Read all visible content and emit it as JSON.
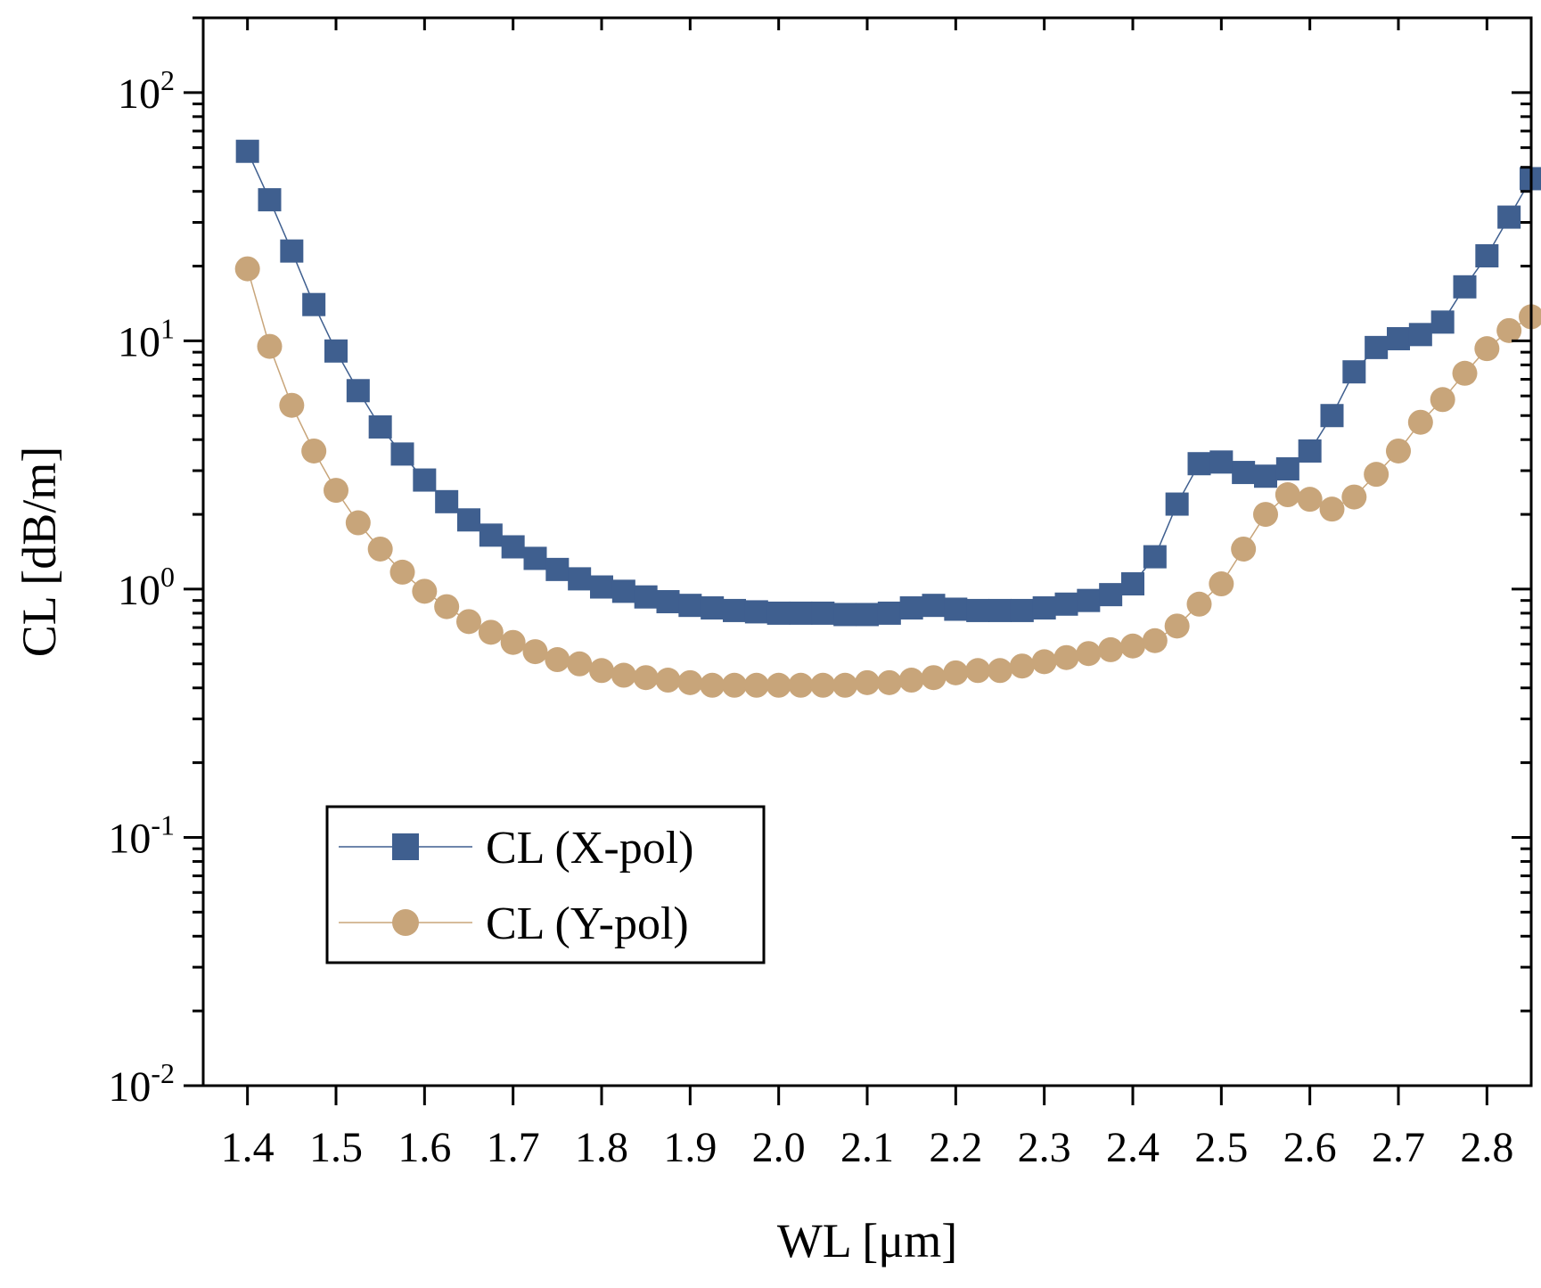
{
  "chart_data": {
    "type": "line",
    "scale_y": "log",
    "xlabel": "WL  [μm]",
    "ylabel": "CL [dB/m]",
    "xlim": [
      1.35,
      2.85
    ],
    "ylim": [
      0.01,
      200
    ],
    "x_ticks": [
      "1.4",
      "1.5",
      "1.6",
      "1.7",
      "1.8",
      "1.9",
      "2.0",
      "2.1",
      "2.2",
      "2.3",
      "2.4",
      "2.5",
      "2.6",
      "2.7",
      "2.8"
    ],
    "y_ticks": [
      {
        "value": 100,
        "base": "10",
        "exp": "2"
      },
      {
        "value": 10,
        "base": "10",
        "exp": "1"
      },
      {
        "value": 1,
        "base": "10",
        "exp": "0"
      },
      {
        "value": 0.1,
        "base": "10",
        "exp": "-1"
      },
      {
        "value": 0.01,
        "base": "10",
        "exp": "-2"
      }
    ],
    "legend_position": "bottom-left",
    "series": [
      {
        "name": "CL (X-pol)",
        "color": "#3f5f8f",
        "marker": "square",
        "x": [
          1.4,
          1.425,
          1.45,
          1.475,
          1.5,
          1.525,
          1.55,
          1.575,
          1.6,
          1.625,
          1.65,
          1.675,
          1.7,
          1.725,
          1.75,
          1.775,
          1.8,
          1.825,
          1.85,
          1.875,
          1.9,
          1.925,
          1.95,
          1.975,
          2.0,
          2.025,
          2.05,
          2.075,
          2.1,
          2.125,
          2.15,
          2.175,
          2.2,
          2.225,
          2.25,
          2.275,
          2.3,
          2.325,
          2.35,
          2.375,
          2.4,
          2.425,
          2.45,
          2.475,
          2.5,
          2.525,
          2.55,
          2.575,
          2.6,
          2.625,
          2.65,
          2.675,
          2.7,
          2.725,
          2.75,
          2.775,
          2.8,
          2.825,
          2.85
        ],
        "values": [
          58,
          37,
          23,
          14,
          9.1,
          6.3,
          4.5,
          3.5,
          2.75,
          2.25,
          1.9,
          1.65,
          1.48,
          1.33,
          1.2,
          1.1,
          1.02,
          0.98,
          0.93,
          0.89,
          0.86,
          0.84,
          0.82,
          0.81,
          0.8,
          0.8,
          0.8,
          0.79,
          0.79,
          0.8,
          0.84,
          0.86,
          0.83,
          0.82,
          0.82,
          0.82,
          0.84,
          0.87,
          0.9,
          0.95,
          1.05,
          1.35,
          2.2,
          3.2,
          3.25,
          2.95,
          2.85,
          3.05,
          3.6,
          5.0,
          7.5,
          9.4,
          10.2,
          10.6,
          11.9,
          16.5,
          22.0,
          31.5,
          45.0
        ]
      },
      {
        "name": "CL (Y-pol)",
        "color": "#c8a57a",
        "marker": "circle",
        "x": [
          1.4,
          1.425,
          1.45,
          1.475,
          1.5,
          1.525,
          1.55,
          1.575,
          1.6,
          1.625,
          1.65,
          1.675,
          1.7,
          1.725,
          1.75,
          1.775,
          1.8,
          1.825,
          1.85,
          1.875,
          1.9,
          1.925,
          1.95,
          1.975,
          2.0,
          2.025,
          2.05,
          2.075,
          2.1,
          2.125,
          2.15,
          2.175,
          2.2,
          2.225,
          2.25,
          2.275,
          2.3,
          2.325,
          2.35,
          2.375,
          2.4,
          2.425,
          2.45,
          2.475,
          2.5,
          2.525,
          2.55,
          2.575,
          2.6,
          2.625,
          2.65,
          2.675,
          2.7,
          2.725,
          2.75,
          2.775,
          2.8,
          2.825,
          2.85
        ],
        "values": [
          19.5,
          9.5,
          5.5,
          3.6,
          2.5,
          1.85,
          1.45,
          1.17,
          0.98,
          0.85,
          0.74,
          0.67,
          0.61,
          0.56,
          0.52,
          0.5,
          0.47,
          0.45,
          0.44,
          0.43,
          0.42,
          0.41,
          0.41,
          0.41,
          0.41,
          0.41,
          0.41,
          0.41,
          0.42,
          0.42,
          0.43,
          0.44,
          0.46,
          0.47,
          0.47,
          0.49,
          0.51,
          0.53,
          0.55,
          0.57,
          0.59,
          0.62,
          0.71,
          0.87,
          1.05,
          1.45,
          2.0,
          2.4,
          2.3,
          2.1,
          2.35,
          2.9,
          3.6,
          4.7,
          5.8,
          7.4,
          9.3,
          11.0,
          12.5
        ]
      }
    ]
  }
}
